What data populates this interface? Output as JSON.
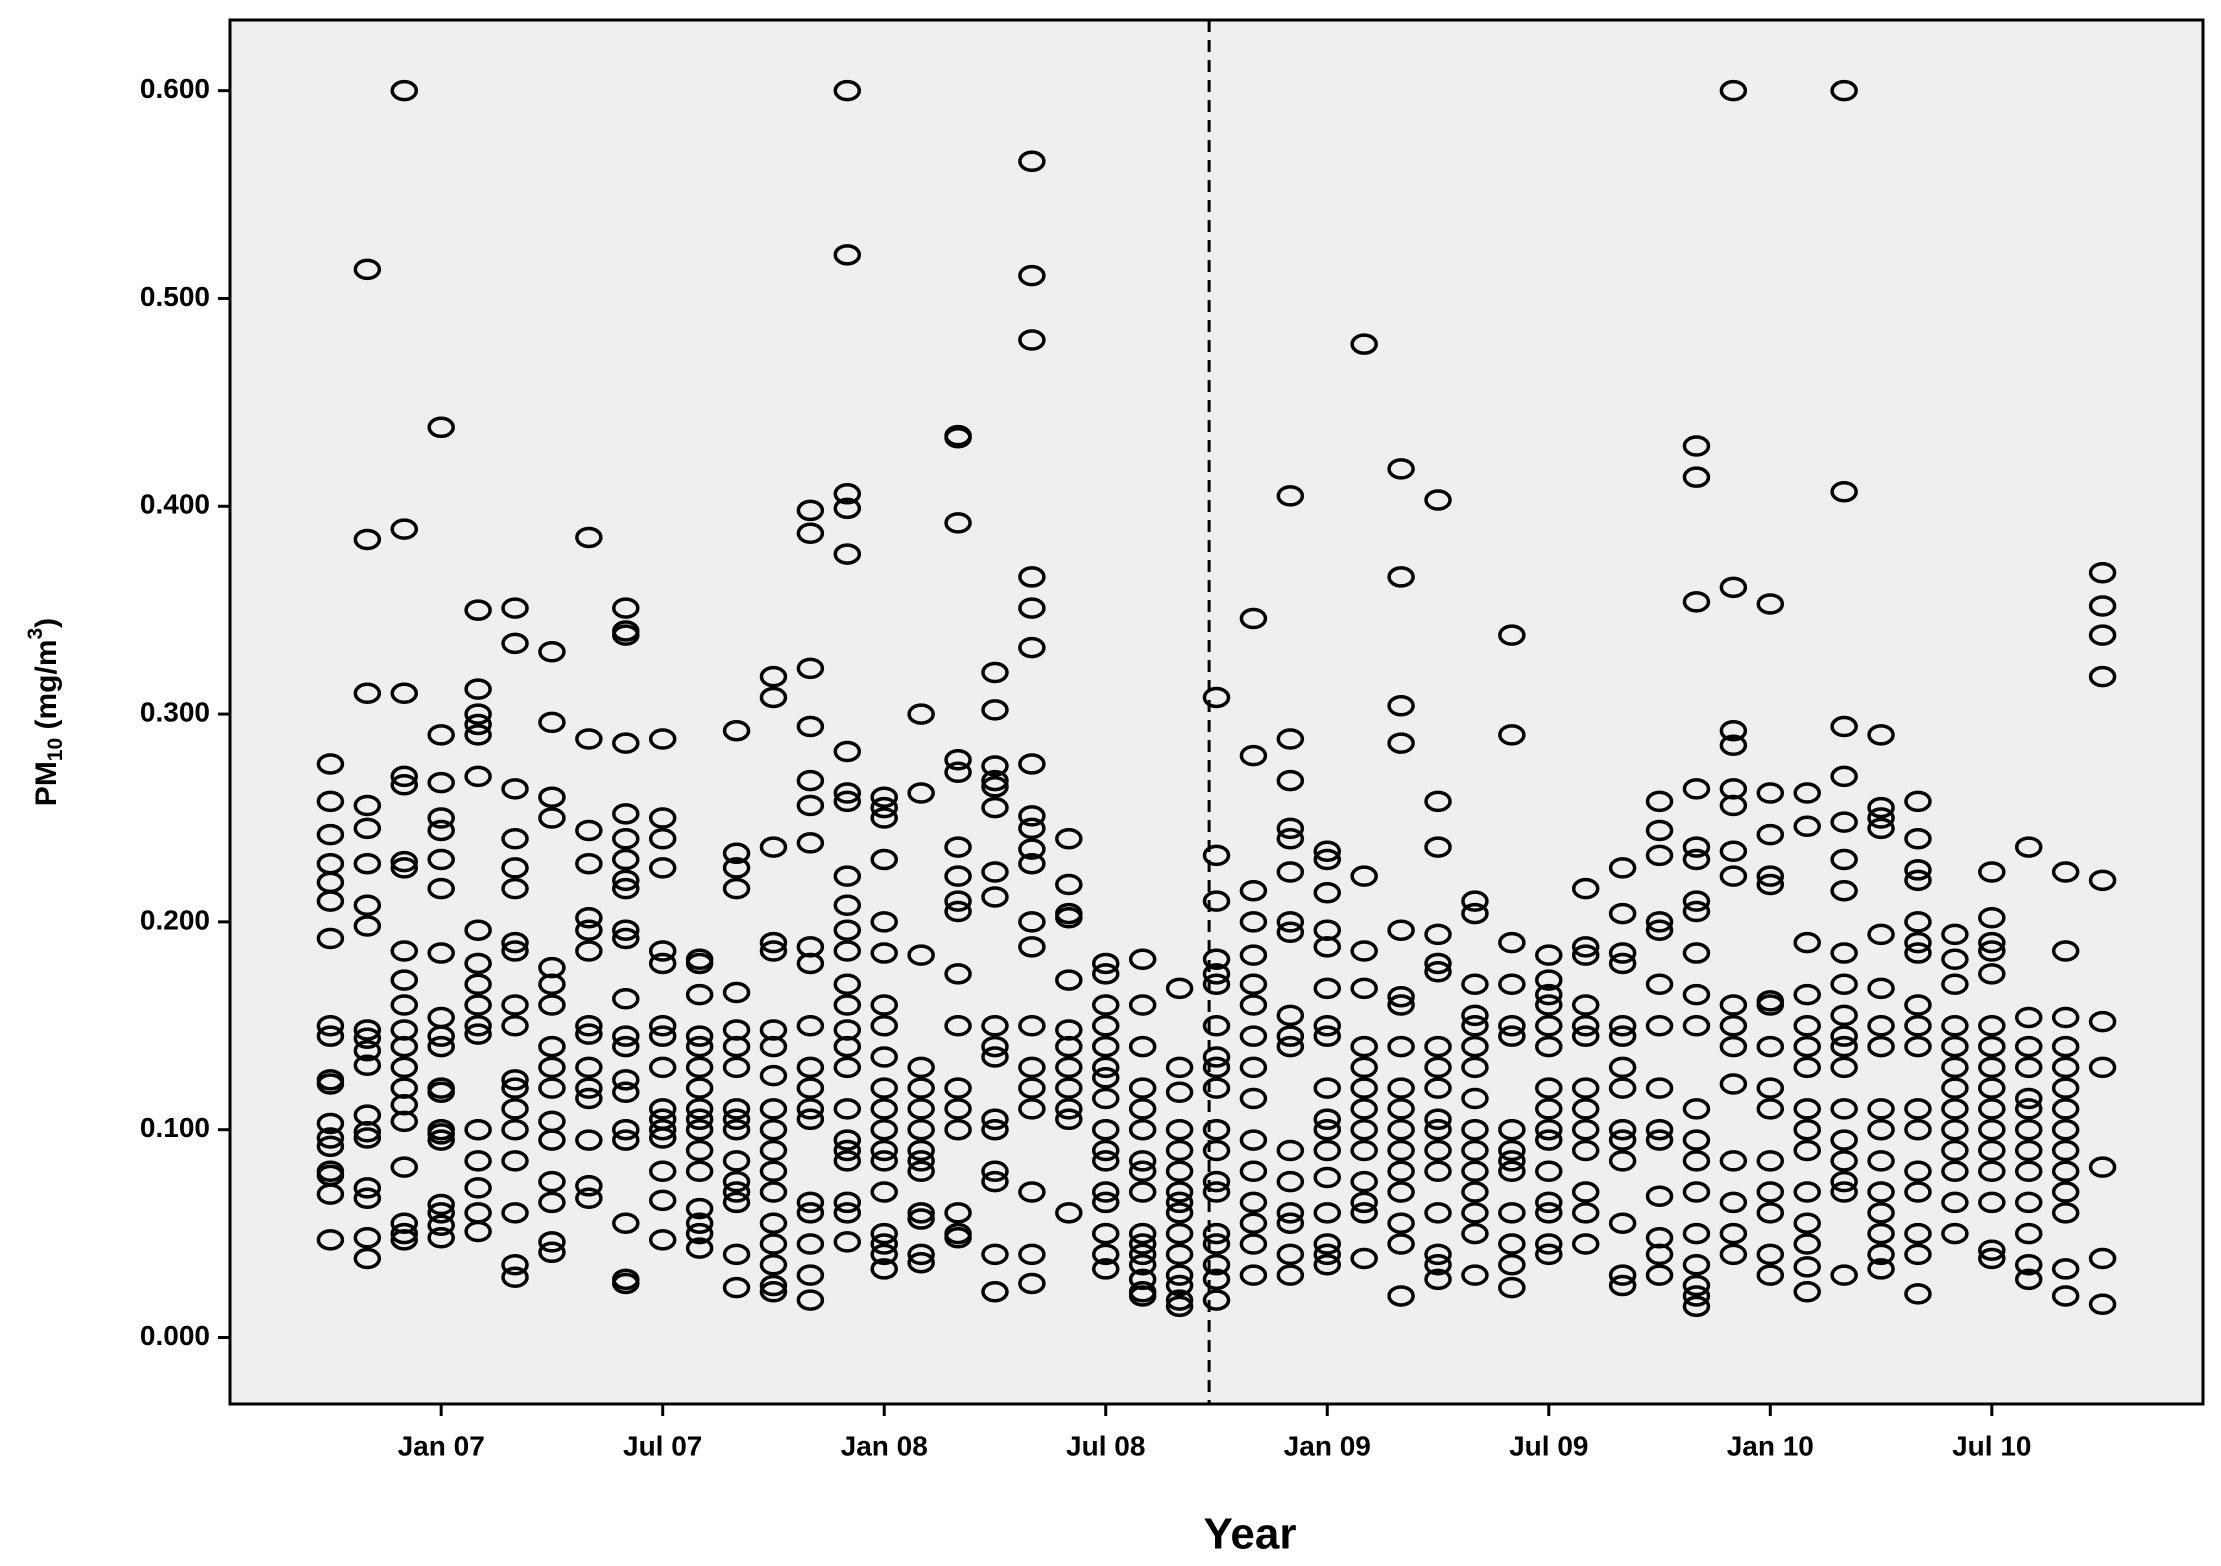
{
  "chart_data": {
    "type": "scatter",
    "x_label": "Year",
    "y_label": {
      "text": "PM",
      "sub": "10",
      "mid": " (mg/m",
      "sup": "3",
      "end": ")"
    },
    "xlim": [
      -5.72,
      47.72
    ],
    "ylim": [
      -0.032,
      0.634
    ],
    "xticks": [
      {
        "value": 0,
        "label": "Jan 07"
      },
      {
        "value": 6,
        "label": "Jul 07"
      },
      {
        "value": 12,
        "label": "Jan 08"
      },
      {
        "value": 18,
        "label": "Jul 08"
      },
      {
        "value": 24,
        "label": "Jan 09"
      },
      {
        "value": 30,
        "label": "Jul 09"
      },
      {
        "value": 36,
        "label": "Jan 10"
      },
      {
        "value": 42,
        "label": "Jul 10"
      }
    ],
    "yticks": [
      {
        "value": 0,
        "label": "0.000"
      },
      {
        "value": 0.1,
        "label": "0.100"
      },
      {
        "value": 0.2,
        "label": "0.200"
      },
      {
        "value": 0.3,
        "label": "0.300"
      },
      {
        "value": 0.4,
        "label": "0.400"
      },
      {
        "value": 0.5,
        "label": "0.500"
      },
      {
        "value": 0.6,
        "label": "0.600"
      }
    ],
    "reference_line": {
      "x": 20.8,
      "style": "dashed"
    },
    "color": "#000000",
    "background": "#efefef",
    "columns": [
      {
        "x": -3,
        "values": [
          0.276,
          0.258,
          0.242,
          0.228,
          0.219,
          0.21,
          0.192,
          0.15,
          0.145,
          0.124,
          0.122,
          0.103,
          0.096,
          0.092,
          0.08,
          0.078,
          0.069,
          0.047
        ]
      },
      {
        "x": -2,
        "values": [
          0.514,
          0.384,
          0.31,
          0.256,
          0.245,
          0.228,
          0.208,
          0.198,
          0.148,
          0.144,
          0.138,
          0.131,
          0.107,
          0.099,
          0.096,
          0.072,
          0.067,
          0.048,
          0.038
        ]
      },
      {
        "x": -1,
        "values": [
          0.6,
          0.389,
          0.31,
          0.27,
          0.266,
          0.229,
          0.226,
          0.186,
          0.172,
          0.16,
          0.148,
          0.14,
          0.13,
          0.12,
          0.112,
          0.104,
          0.082,
          0.055,
          0.05,
          0.047
        ]
      },
      {
        "x": 0,
        "values": [
          0.438,
          0.29,
          0.267,
          0.25,
          0.244,
          0.23,
          0.216,
          0.185,
          0.154,
          0.145,
          0.14,
          0.12,
          0.118,
          0.1,
          0.098,
          0.095,
          0.064,
          0.06,
          0.054,
          0.048
        ]
      },
      {
        "x": 1,
        "values": [
          0.35,
          0.312,
          0.3,
          0.295,
          0.29,
          0.27,
          0.196,
          0.18,
          0.17,
          0.16,
          0.15,
          0.146,
          0.1,
          0.085,
          0.072,
          0.06,
          0.051
        ]
      },
      {
        "x": 2,
        "values": [
          0.351,
          0.334,
          0.264,
          0.24,
          0.226,
          0.216,
          0.19,
          0.186,
          0.16,
          0.15,
          0.124,
          0.12,
          0.11,
          0.1,
          0.085,
          0.06,
          0.035,
          0.029
        ]
      },
      {
        "x": 3,
        "values": [
          0.33,
          0.296,
          0.26,
          0.25,
          0.178,
          0.17,
          0.16,
          0.14,
          0.13,
          0.12,
          0.104,
          0.095,
          0.075,
          0.065,
          0.046,
          0.041
        ]
      },
      {
        "x": 4,
        "values": [
          0.385,
          0.288,
          0.244,
          0.228,
          0.202,
          0.196,
          0.186,
          0.15,
          0.146,
          0.13,
          0.12,
          0.115,
          0.095,
          0.073,
          0.067
        ]
      },
      {
        "x": 5,
        "values": [
          0.351,
          0.34,
          0.338,
          0.286,
          0.252,
          0.24,
          0.23,
          0.22,
          0.216,
          0.196,
          0.192,
          0.163,
          0.145,
          0.14,
          0.124,
          0.118,
          0.1,
          0.095,
          0.055,
          0.028,
          0.026
        ]
      },
      {
        "x": 6,
        "values": [
          0.288,
          0.25,
          0.24,
          0.226,
          0.186,
          0.18,
          0.15,
          0.145,
          0.13,
          0.11,
          0.105,
          0.1,
          0.096,
          0.08,
          0.066,
          0.047
        ]
      },
      {
        "x": 7,
        "values": [
          0.182,
          0.18,
          0.165,
          0.145,
          0.14,
          0.13,
          0.12,
          0.11,
          0.105,
          0.1,
          0.09,
          0.08,
          0.062,
          0.055,
          0.05,
          0.043
        ]
      },
      {
        "x": 8,
        "values": [
          0.292,
          0.233,
          0.226,
          0.216,
          0.166,
          0.148,
          0.14,
          0.13,
          0.11,
          0.105,
          0.1,
          0.085,
          0.075,
          0.07,
          0.065,
          0.04,
          0.024
        ]
      },
      {
        "x": 9,
        "values": [
          0.318,
          0.308,
          0.236,
          0.19,
          0.186,
          0.148,
          0.14,
          0.126,
          0.11,
          0.1,
          0.09,
          0.08,
          0.07,
          0.055,
          0.045,
          0.035,
          0.025,
          0.022
        ]
      },
      {
        "x": 10,
        "values": [
          0.398,
          0.387,
          0.322,
          0.294,
          0.268,
          0.256,
          0.238,
          0.188,
          0.18,
          0.15,
          0.13,
          0.12,
          0.11,
          0.105,
          0.065,
          0.06,
          0.045,
          0.03,
          0.018
        ]
      },
      {
        "x": 11,
        "values": [
          0.6,
          0.521,
          0.406,
          0.399,
          0.377,
          0.282,
          0.262,
          0.258,
          0.222,
          0.208,
          0.196,
          0.186,
          0.17,
          0.16,
          0.148,
          0.14,
          0.13,
          0.11,
          0.095,
          0.09,
          0.085,
          0.065,
          0.06,
          0.046
        ]
      },
      {
        "x": 12,
        "values": [
          0.26,
          0.255,
          0.25,
          0.23,
          0.2,
          0.185,
          0.16,
          0.15,
          0.135,
          0.12,
          0.11,
          0.1,
          0.09,
          0.085,
          0.07,
          0.05,
          0.045,
          0.04,
          0.033
        ]
      },
      {
        "x": 13,
        "values": [
          0.3,
          0.262,
          0.184,
          0.13,
          0.12,
          0.11,
          0.1,
          0.09,
          0.085,
          0.08,
          0.06,
          0.057,
          0.04,
          0.036
        ]
      },
      {
        "x": 14,
        "values": [
          0.434,
          0.433,
          0.392,
          0.278,
          0.272,
          0.236,
          0.222,
          0.21,
          0.205,
          0.175,
          0.15,
          0.12,
          0.11,
          0.1,
          0.06,
          0.05,
          0.048
        ]
      },
      {
        "x": 15,
        "values": [
          0.32,
          0.302,
          0.275,
          0.268,
          0.265,
          0.255,
          0.224,
          0.212,
          0.15,
          0.14,
          0.135,
          0.105,
          0.1,
          0.08,
          0.075,
          0.04,
          0.022
        ]
      },
      {
        "x": 16,
        "values": [
          0.566,
          0.511,
          0.48,
          0.366,
          0.351,
          0.332,
          0.276,
          0.251,
          0.245,
          0.235,
          0.228,
          0.2,
          0.188,
          0.15,
          0.13,
          0.12,
          0.11,
          0.07,
          0.04,
          0.026
        ]
      },
      {
        "x": 17,
        "values": [
          0.24,
          0.218,
          0.204,
          0.202,
          0.172,
          0.148,
          0.14,
          0.13,
          0.12,
          0.11,
          0.105,
          0.06
        ]
      },
      {
        "x": 18,
        "values": [
          0.18,
          0.175,
          0.16,
          0.15,
          0.14,
          0.13,
          0.125,
          0.115,
          0.1,
          0.09,
          0.085,
          0.07,
          0.065,
          0.05,
          0.04,
          0.033
        ]
      },
      {
        "x": 19,
        "values": [
          0.182,
          0.16,
          0.14,
          0.12,
          0.11,
          0.1,
          0.085,
          0.08,
          0.07,
          0.05,
          0.045,
          0.04,
          0.035,
          0.028,
          0.022,
          0.02
        ]
      },
      {
        "x": 20,
        "values": [
          0.168,
          0.13,
          0.118,
          0.1,
          0.09,
          0.08,
          0.07,
          0.065,
          0.06,
          0.05,
          0.04,
          0.03,
          0.025,
          0.018,
          0.015
        ]
      },
      {
        "x": 21,
        "values": [
          0.308,
          0.232,
          0.21,
          0.182,
          0.175,
          0.17,
          0.15,
          0.135,
          0.13,
          0.12,
          0.1,
          0.09,
          0.075,
          0.07,
          0.05,
          0.045,
          0.035,
          0.028,
          0.018
        ]
      },
      {
        "x": 22,
        "values": [
          0.346,
          0.28,
          0.215,
          0.2,
          0.184,
          0.17,
          0.16,
          0.145,
          0.13,
          0.115,
          0.095,
          0.08,
          0.065,
          0.055,
          0.045,
          0.03
        ]
      },
      {
        "x": 23,
        "values": [
          0.405,
          0.288,
          0.268,
          0.245,
          0.24,
          0.224,
          0.2,
          0.195,
          0.155,
          0.145,
          0.14,
          0.09,
          0.075,
          0.06,
          0.055,
          0.04,
          0.03
        ]
      },
      {
        "x": 24,
        "values": [
          0.234,
          0.23,
          0.214,
          0.196,
          0.188,
          0.168,
          0.15,
          0.145,
          0.12,
          0.105,
          0.1,
          0.09,
          0.077,
          0.06,
          0.045,
          0.04,
          0.035
        ]
      },
      {
        "x": 25,
        "values": [
          0.478,
          0.222,
          0.186,
          0.168,
          0.14,
          0.13,
          0.12,
          0.11,
          0.1,
          0.09,
          0.075,
          0.065,
          0.06,
          0.038
        ]
      },
      {
        "x": 26,
        "values": [
          0.418,
          0.366,
          0.304,
          0.286,
          0.196,
          0.164,
          0.16,
          0.14,
          0.12,
          0.11,
          0.1,
          0.09,
          0.08,
          0.07,
          0.055,
          0.045,
          0.02
        ]
      },
      {
        "x": 27,
        "values": [
          0.403,
          0.258,
          0.236,
          0.194,
          0.18,
          0.176,
          0.14,
          0.13,
          0.12,
          0.105,
          0.1,
          0.09,
          0.08,
          0.06,
          0.04,
          0.035,
          0.028
        ]
      },
      {
        "x": 28,
        "values": [
          0.21,
          0.204,
          0.17,
          0.155,
          0.15,
          0.14,
          0.13,
          0.115,
          0.1,
          0.09,
          0.08,
          0.07,
          0.06,
          0.05,
          0.03
        ]
      },
      {
        "x": 29,
        "values": [
          0.338,
          0.29,
          0.19,
          0.17,
          0.15,
          0.145,
          0.1,
          0.09,
          0.085,
          0.08,
          0.06,
          0.045,
          0.035,
          0.024
        ]
      },
      {
        "x": 30,
        "values": [
          0.184,
          0.172,
          0.165,
          0.16,
          0.15,
          0.14,
          0.12,
          0.11,
          0.1,
          0.095,
          0.08,
          0.065,
          0.06,
          0.045,
          0.04
        ]
      },
      {
        "x": 31,
        "values": [
          0.216,
          0.188,
          0.184,
          0.16,
          0.15,
          0.145,
          0.12,
          0.11,
          0.1,
          0.09,
          0.07,
          0.06,
          0.045
        ]
      },
      {
        "x": 32,
        "values": [
          0.226,
          0.204,
          0.185,
          0.18,
          0.15,
          0.145,
          0.13,
          0.12,
          0.1,
          0.095,
          0.085,
          0.055,
          0.03,
          0.025
        ]
      },
      {
        "x": 33,
        "values": [
          0.258,
          0.244,
          0.232,
          0.2,
          0.196,
          0.17,
          0.15,
          0.12,
          0.1,
          0.095,
          0.068,
          0.048,
          0.04,
          0.03
        ]
      },
      {
        "x": 34,
        "values": [
          0.429,
          0.414,
          0.354,
          0.264,
          0.236,
          0.23,
          0.21,
          0.205,
          0.185,
          0.165,
          0.15,
          0.11,
          0.095,
          0.085,
          0.07,
          0.05,
          0.035,
          0.025,
          0.02,
          0.015
        ]
      },
      {
        "x": 35,
        "values": [
          0.6,
          0.361,
          0.292,
          0.285,
          0.264,
          0.256,
          0.234,
          0.222,
          0.16,
          0.15,
          0.14,
          0.122,
          0.085,
          0.065,
          0.05,
          0.04
        ]
      },
      {
        "x": 36,
        "values": [
          0.353,
          0.262,
          0.242,
          0.222,
          0.218,
          0.162,
          0.16,
          0.14,
          0.12,
          0.11,
          0.085,
          0.07,
          0.06,
          0.04,
          0.03
        ]
      },
      {
        "x": 37,
        "values": [
          0.262,
          0.246,
          0.19,
          0.165,
          0.15,
          0.14,
          0.13,
          0.11,
          0.1,
          0.09,
          0.07,
          0.055,
          0.045,
          0.034,
          0.022
        ]
      },
      {
        "x": 38,
        "values": [
          0.6,
          0.407,
          0.294,
          0.27,
          0.248,
          0.23,
          0.215,
          0.185,
          0.17,
          0.155,
          0.145,
          0.14,
          0.13,
          0.11,
          0.095,
          0.085,
          0.075,
          0.07,
          0.03
        ]
      },
      {
        "x": 39,
        "values": [
          0.29,
          0.255,
          0.25,
          0.245,
          0.194,
          0.168,
          0.15,
          0.14,
          0.11,
          0.1,
          0.085,
          0.07,
          0.06,
          0.05,
          0.04,
          0.033
        ]
      },
      {
        "x": 40,
        "values": [
          0.258,
          0.24,
          0.225,
          0.22,
          0.2,
          0.19,
          0.185,
          0.16,
          0.15,
          0.14,
          0.11,
          0.1,
          0.08,
          0.07,
          0.05,
          0.04,
          0.021
        ]
      },
      {
        "x": 41,
        "values": [
          0.194,
          0.182,
          0.17,
          0.15,
          0.14,
          0.13,
          0.12,
          0.11,
          0.1,
          0.09,
          0.08,
          0.065,
          0.05
        ]
      },
      {
        "x": 42,
        "values": [
          0.224,
          0.202,
          0.19,
          0.186,
          0.175,
          0.15,
          0.14,
          0.13,
          0.12,
          0.11,
          0.1,
          0.09,
          0.08,
          0.065,
          0.042,
          0.038
        ]
      },
      {
        "x": 43,
        "values": [
          0.236,
          0.154,
          0.14,
          0.13,
          0.115,
          0.11,
          0.1,
          0.09,
          0.08,
          0.065,
          0.05,
          0.035,
          0.028
        ]
      },
      {
        "x": 44,
        "values": [
          0.224,
          0.186,
          0.154,
          0.14,
          0.13,
          0.12,
          0.11,
          0.1,
          0.09,
          0.08,
          0.07,
          0.06,
          0.033,
          0.02
        ]
      },
      {
        "x": 45,
        "values": [
          0.368,
          0.352,
          0.338,
          0.318,
          0.22,
          0.152,
          0.13,
          0.082,
          0.038,
          0.016
        ]
      }
    ]
  }
}
